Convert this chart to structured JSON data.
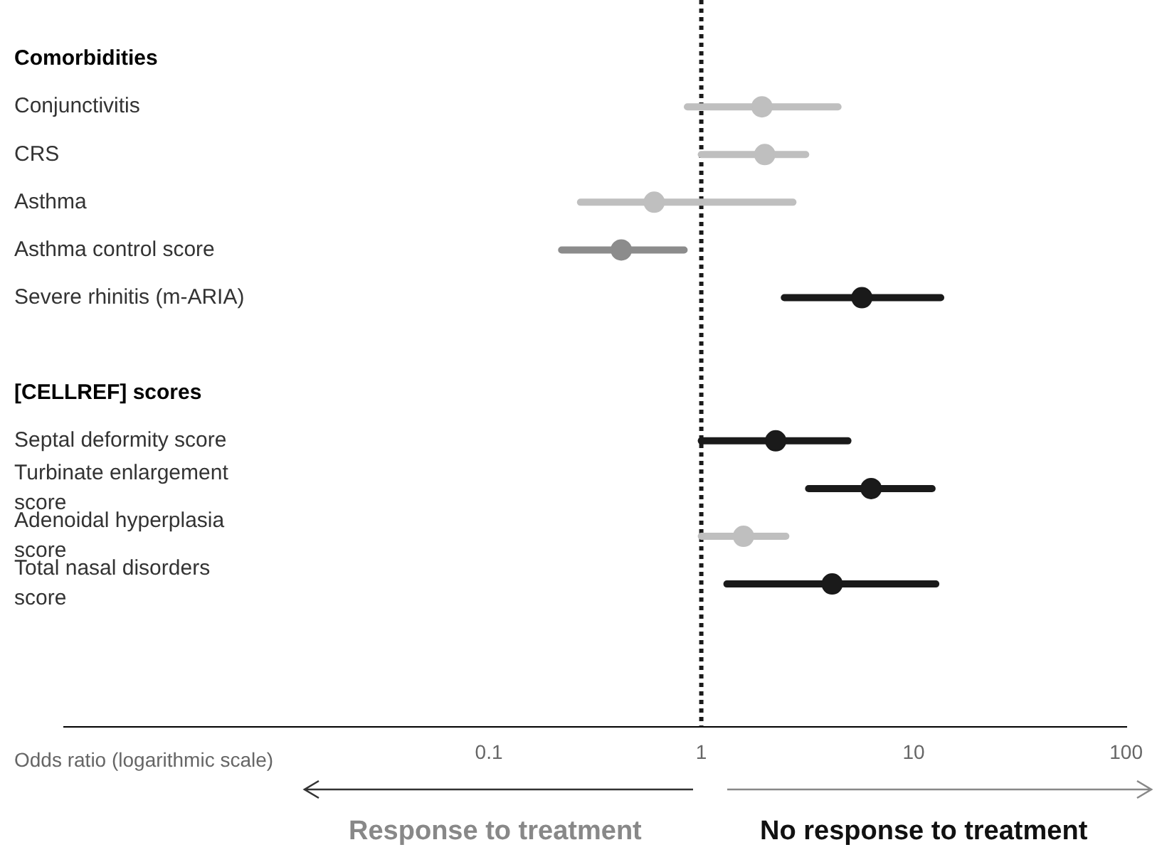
{
  "chart_data": {
    "type": "scatter",
    "orientation": "horizontal",
    "categories": [
      "Comorbidities",
      "Conjunctivitis",
      "CRS",
      "Asthma",
      "Asthma control score",
      "Severe rhinitis (m-ARIA)",
      null,
      "[CELLREF] scores",
      "Septal deformity score",
      "Turbinate enlargement score",
      "Adenoidal hyperplasia score",
      "Total nasal disorders score"
    ],
    "values": [
      null,
      1.93,
      1.99,
      0.6,
      0.42,
      5.7,
      null,
      null,
      2.24,
      6.3,
      1.58,
      4.13
    ],
    "errors": [
      null,
      [
        0.86,
        4.4
      ],
      [
        1.0,
        3.1
      ],
      [
        0.27,
        2.7
      ],
      [
        0.22,
        0.83
      ],
      [
        2.46,
        13.4
      ],
      null,
      null,
      [
        1.0,
        4.9
      ],
      [
        3.2,
        12.2
      ],
      [
        1.0,
        2.5
      ],
      [
        1.32,
        12.7
      ]
    ],
    "colors": [
      "#000000",
      "#bfbfbf",
      "#bfbfbf",
      "#bfbfbf",
      "#8c8c8c",
      "#1a1a1a",
      "#000000",
      "#000000",
      "#1a1a1a",
      "#1a1a1a",
      "#bfbfbf",
      "#1a1a1a"
    ],
    "xlabel": "Odds ratio (logarithmic scale)",
    "xlim": [
      0.001,
      100
    ],
    "xticks": [
      0.1,
      1,
      10,
      100
    ],
    "log": "x",
    "grid": false,
    "legend": false,
    "marker": "circle",
    "ref_lines": [
      {
        "axis": "x",
        "value": 1,
        "color": "#1a1a1a",
        "line_style": "dotted"
      }
    ],
    "annotations": [
      "Response to treatment",
      "No response to treatment"
    ]
  }
}
